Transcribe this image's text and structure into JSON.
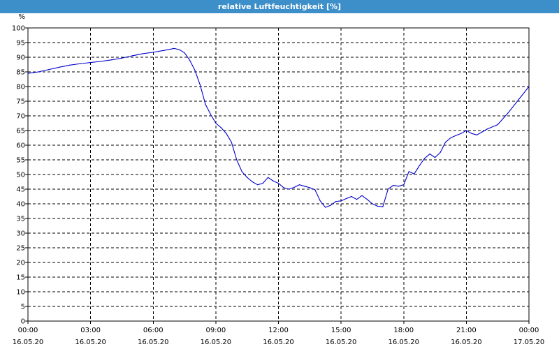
{
  "window": {
    "title": "relative Luftfeuchtigkeit [%]"
  },
  "chart_data": {
    "type": "line",
    "title": "relative Luftfeuchtigkeit [%]",
    "ylabel": "%",
    "xlabel": "",
    "ylim": [
      0,
      100
    ],
    "y_ticks": [
      0,
      5,
      10,
      15,
      20,
      25,
      30,
      35,
      40,
      45,
      50,
      55,
      60,
      65,
      70,
      75,
      80,
      85,
      90,
      95,
      100
    ],
    "xlim_hours": [
      0,
      24
    ],
    "x_ticks": [
      {
        "time": "00:00",
        "date": "16.05.20"
      },
      {
        "time": "03:00",
        "date": "16.05.20"
      },
      {
        "time": "06:00",
        "date": "16.05.20"
      },
      {
        "time": "09:00",
        "date": "16.05.20"
      },
      {
        "time": "12:00",
        "date": "16.05.20"
      },
      {
        "time": "15:00",
        "date": "16.05.20"
      },
      {
        "time": "18:00",
        "date": "16.05.20"
      },
      {
        "time": "21:00",
        "date": "16.05.20"
      },
      {
        "time": "00:00",
        "date": "17.05.20"
      }
    ],
    "grid": true,
    "line_color": "#0000cc",
    "series": [
      {
        "x": [
          "16.05.20 00:00",
          "16.05.20 00:30",
          "16.05.20 01:00",
          "16.05.20 01:30",
          "16.05.20 02:00",
          "16.05.20 02:30",
          "16.05.20 03:00",
          "16.05.20 03:30",
          "16.05.20 04:00",
          "16.05.20 04:30",
          "16.05.20 05:00",
          "16.05.20 05:30",
          "16.05.20 06:00",
          "16.05.20 06:30",
          "16.05.20 07:00",
          "16.05.20 07:15",
          "16.05.20 07:30",
          "16.05.20 07:45",
          "16.05.20 08:00",
          "16.05.20 08:15",
          "16.05.20 08:30",
          "16.05.20 08:45",
          "16.05.20 09:00",
          "16.05.20 09:15",
          "16.05.20 09:30",
          "16.05.20 09:45",
          "16.05.20 10:00",
          "16.05.20 10:15",
          "16.05.20 10:30",
          "16.05.20 10:45",
          "16.05.20 11:00",
          "16.05.20 11:15",
          "16.05.20 11:30",
          "16.05.20 11:45",
          "16.05.20 12:00",
          "16.05.20 12:15",
          "16.05.20 12:30",
          "16.05.20 12:45",
          "16.05.20 13:00",
          "16.05.20 13:15",
          "16.05.20 13:30",
          "16.05.20 13:45",
          "16.05.20 14:00",
          "16.05.20 14:15",
          "16.05.20 14:30",
          "16.05.20 14:45",
          "16.05.20 15:00",
          "16.05.20 15:15",
          "16.05.20 15:30",
          "16.05.20 15:45",
          "16.05.20 16:00",
          "16.05.20 16:15",
          "16.05.20 16:30",
          "16.05.20 16:45",
          "16.05.20 17:00",
          "16.05.20 17:15",
          "16.05.20 17:30",
          "16.05.20 17:45",
          "16.05.20 18:00",
          "16.05.20 18:15",
          "16.05.20 18:30",
          "16.05.20 18:45",
          "16.05.20 19:00",
          "16.05.20 19:15",
          "16.05.20 19:30",
          "16.05.20 19:45",
          "16.05.20 20:00",
          "16.05.20 20:15",
          "16.05.20 20:30",
          "16.05.20 20:45",
          "16.05.20 21:00",
          "16.05.20 21:15",
          "16.05.20 21:30",
          "16.05.20 21:45",
          "16.05.20 22:00",
          "16.05.20 22:30",
          "16.05.20 23:00",
          "16.05.20 23:30",
          "17.05.20 00:00"
        ],
        "values": [
          84.5,
          85.0,
          85.8,
          86.6,
          87.3,
          87.8,
          88.2,
          88.6,
          89.1,
          89.7,
          90.5,
          91.2,
          91.7,
          92.3,
          93.0,
          92.6,
          91.5,
          89.0,
          85.5,
          80.5,
          74.0,
          70.5,
          67.5,
          66.0,
          64.0,
          61.0,
          55.0,
          51.0,
          49.0,
          47.5,
          46.5,
          47.0,
          49.0,
          47.8,
          47.0,
          45.5,
          45.0,
          45.6,
          46.5,
          46.0,
          45.5,
          44.8,
          41.0,
          38.8,
          39.5,
          40.8,
          41.0,
          41.8,
          42.5,
          41.5,
          42.8,
          41.5,
          40.0,
          39.2,
          39.0,
          45.0,
          46.3,
          46.0,
          46.5,
          51.0,
          50.2,
          53.0,
          55.5,
          57.0,
          55.8,
          57.5,
          61.0,
          62.5,
          63.3,
          64.0,
          65.0,
          64.0,
          63.5,
          64.5,
          65.5,
          67.0,
          71.0,
          75.5,
          80.0
        ]
      }
    ]
  }
}
